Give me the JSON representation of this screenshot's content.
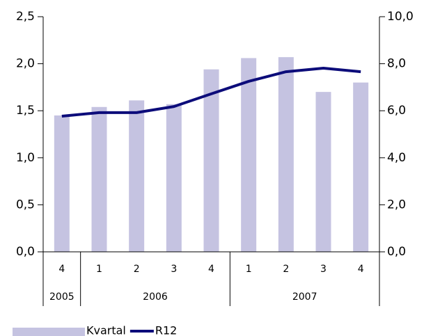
{
  "chart_data": {
    "type": "bar-line",
    "categories": [
      "4",
      "1",
      "2",
      "3",
      "4",
      "1",
      "2",
      "3",
      "4"
    ],
    "year_groups": [
      {
        "label": "2005",
        "count": 1
      },
      {
        "label": "2006",
        "count": 4
      },
      {
        "label": "2007",
        "count": 4
      }
    ],
    "series": [
      {
        "name": "Kvartal",
        "type": "bar",
        "axis": "y",
        "color": "#c5c3e1",
        "values": [
          1.45,
          1.54,
          1.61,
          1.57,
          1.94,
          2.06,
          2.07,
          1.7,
          1.8
        ]
      },
      {
        "name": "R12",
        "type": "line",
        "axis": "y2",
        "color": "#0c0c7a",
        "values": [
          5.77,
          5.92,
          5.92,
          6.18,
          6.72,
          7.25,
          7.66,
          7.81,
          7.66
        ]
      }
    ],
    "ylim": [
      0,
      2.5
    ],
    "yticks": [
      {
        "value": 0,
        "label": "0,0"
      },
      {
        "value": 0.5,
        "label": "0,5"
      },
      {
        "value": 1,
        "label": "1,0"
      },
      {
        "value": 1.5,
        "label": "1,5"
      },
      {
        "value": 2,
        "label": "2,0"
      },
      {
        "value": 2.5,
        "label": "2,5"
      }
    ],
    "y2lim": [
      0,
      10
    ],
    "y2ticks": [
      {
        "value": 0,
        "label": "0,0"
      },
      {
        "value": 2,
        "label": "2,0"
      },
      {
        "value": 4,
        "label": "4,0"
      },
      {
        "value": 6,
        "label": "6,0"
      },
      {
        "value": 8,
        "label": "8,0"
      },
      {
        "value": 10,
        "label": "10,0"
      }
    ],
    "grid": false
  }
}
